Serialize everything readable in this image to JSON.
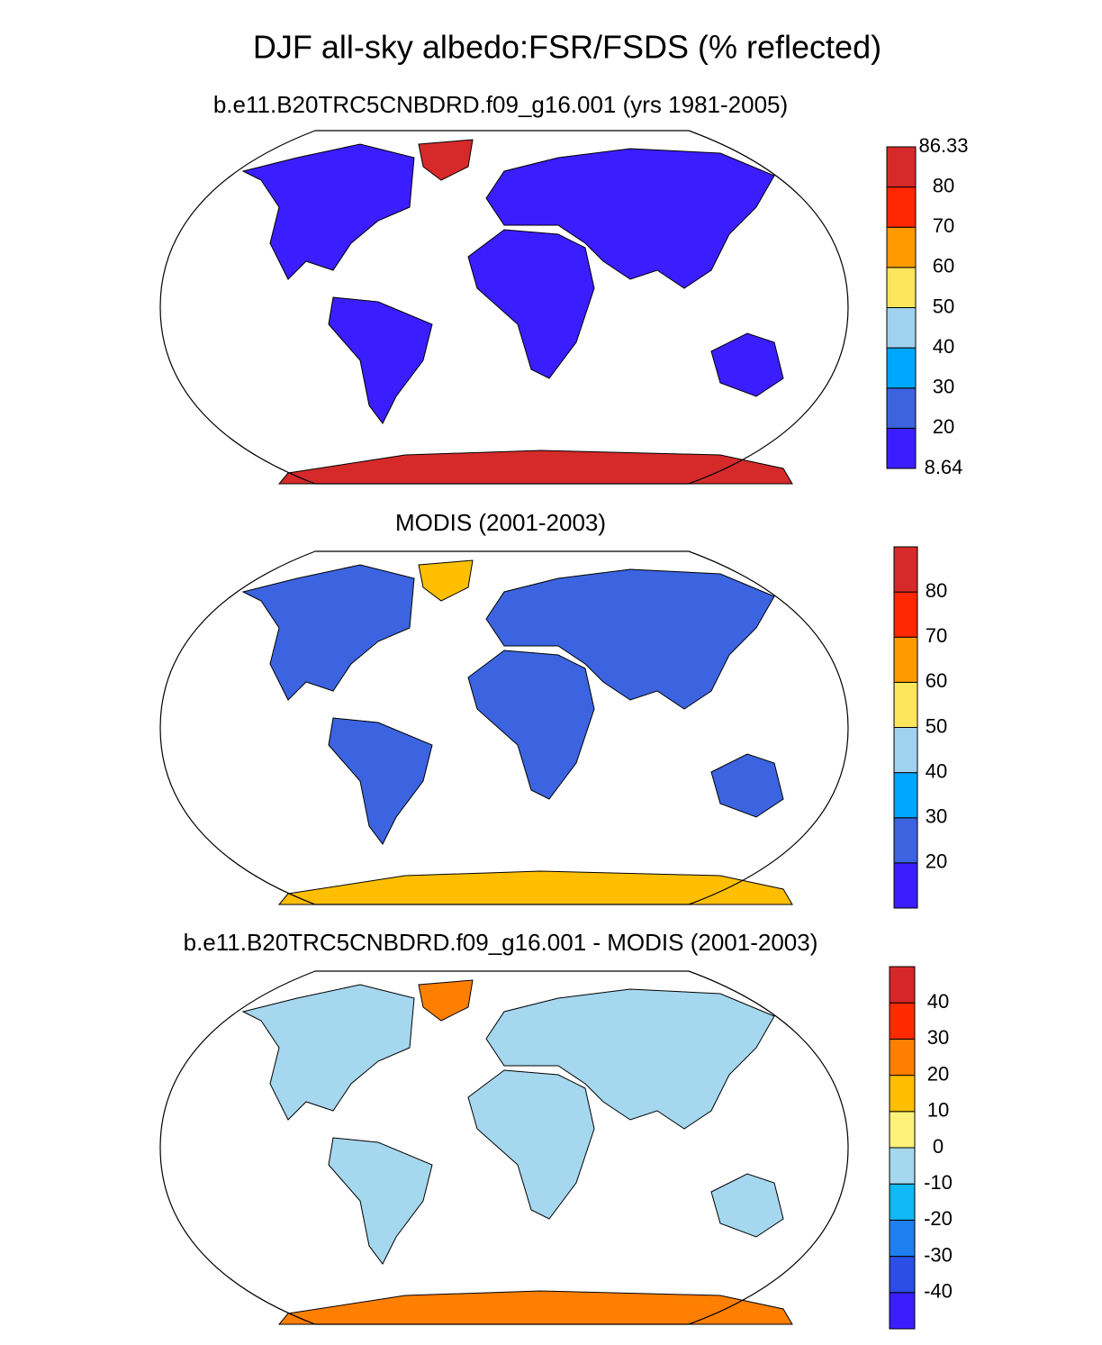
{
  "title": "DJF all-sky albedo:FSR/FSDS (% reflected)",
  "panels": [
    {
      "subtitle": "b.e11.B20TRC5CNBDRD.f09_g16.001 (yrs 1981-2005)",
      "colorbar": {
        "colors": [
          "#3b1eff",
          "#3c64e0",
          "#00a7ff",
          "#a0d2f0",
          "#fde65b",
          "#ff9b00",
          "#ff2800",
          "#d62a2a"
        ],
        "ticks": [
          8.64,
          20,
          30,
          40,
          50,
          60,
          70,
          80,
          86.33
        ]
      }
    },
    {
      "subtitle": "MODIS (2001-2003)",
      "colorbar": {
        "colors": [
          "#3b1eff",
          "#3c64e0",
          "#00a7ff",
          "#a0d2f0",
          "#fde65b",
          "#ff9b00",
          "#ff2800",
          "#d62a2a"
        ],
        "ticks": [
          20,
          30,
          40,
          50,
          60,
          70,
          80
        ]
      }
    },
    {
      "subtitle": "b.e11.B20TRC5CNBDRD.f09_g16.001 - MODIS (2001-2003)",
      "colorbar": {
        "colors": [
          "#3b1eff",
          "#2a4ee6",
          "#1e7ff0",
          "#10b8f5",
          "#a5d7ef",
          "#fff27a",
          "#ffbf00",
          "#ff7f00",
          "#ff2a00",
          "#d6282a"
        ],
        "ticks": [
          -40,
          -30,
          -20,
          -10,
          0,
          10,
          20,
          30,
          40
        ]
      }
    }
  ]
}
